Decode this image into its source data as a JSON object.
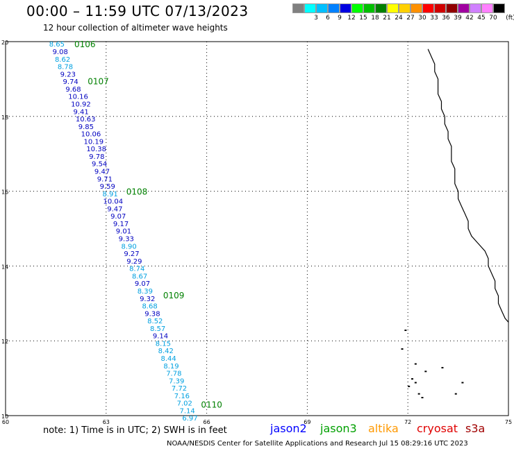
{
  "header": {
    "title": "00:00 – 11:59 UTC 07/13/2023",
    "subtitle": "12 hour collection of altimeter wave heights"
  },
  "legend": {
    "swatches": [
      {
        "label": "",
        "color": "#808080"
      },
      {
        "label": "3",
        "color": "#00ffff"
      },
      {
        "label": "6",
        "color": "#00bfff"
      },
      {
        "label": "9",
        "color": "#0080ff"
      },
      {
        "label": "12",
        "color": "#0000e0"
      },
      {
        "label": "15",
        "color": "#00ff00"
      },
      {
        "label": "18",
        "color": "#00c000"
      },
      {
        "label": "21",
        "color": "#008000"
      },
      {
        "label": "24",
        "color": "#ffff00"
      },
      {
        "label": "27",
        "color": "#ffd000"
      },
      {
        "label": "30",
        "color": "#ff9000"
      },
      {
        "label": "33",
        "color": "#ff0000"
      },
      {
        "label": "36",
        "color": "#d00000"
      },
      {
        "label": "39",
        "color": "#900000"
      },
      {
        "label": "42",
        "color": "#a000a0"
      },
      {
        "label": "45",
        "color": "#d080ff"
      },
      {
        "label": "70",
        "color": "#ff80ff"
      },
      {
        "label": "",
        "color": "#000000"
      }
    ],
    "unit": "(ft)"
  },
  "map": {
    "lat_ticks": [
      "20",
      "18",
      "16",
      "14",
      "12",
      "10"
    ],
    "lon_ticks": [
      "60",
      "63",
      "66",
      "69",
      "72",
      "75"
    ],
    "track_color_dark": "#0000c0",
    "track_color_light": "#00a0e0",
    "time_label_color": "#008000",
    "time_labels": [
      {
        "text": "0106",
        "lat": 19.94,
        "lon": 62.05
      },
      {
        "text": "0107",
        "lat": 18.95,
        "lon": 62.45
      },
      {
        "text": "0108",
        "lat": 16.0,
        "lon": 63.6
      },
      {
        "text": "0109",
        "lat": 13.23,
        "lon": 64.7
      },
      {
        "text": "0110",
        "lat": 10.31,
        "lon": 65.83
      }
    ],
    "points": [
      {
        "text": "8.65",
        "lat": 19.94,
        "lon": 61.3,
        "tone": "light"
      },
      {
        "text": "9.08",
        "lat": 19.74,
        "lon": 61.4,
        "tone": "dark"
      },
      {
        "text": "8.62",
        "lat": 19.54,
        "lon": 61.47,
        "tone": "light"
      },
      {
        "text": "8.78",
        "lat": 19.34,
        "lon": 61.55,
        "tone": "light"
      },
      {
        "text": "9.23",
        "lat": 19.14,
        "lon": 61.63,
        "tone": "dark"
      },
      {
        "text": "9.74",
        "lat": 18.94,
        "lon": 61.71,
        "tone": "dark"
      },
      {
        "text": "9.68",
        "lat": 18.74,
        "lon": 61.79,
        "tone": "dark"
      },
      {
        "text": "10.16",
        "lat": 18.54,
        "lon": 61.87,
        "tone": "dark"
      },
      {
        "text": "10.92",
        "lat": 18.34,
        "lon": 61.95,
        "tone": "dark"
      },
      {
        "text": "9.41",
        "lat": 18.14,
        "lon": 62.02,
        "tone": "dark"
      },
      {
        "text": "10.63",
        "lat": 17.94,
        "lon": 62.09,
        "tone": "dark"
      },
      {
        "text": "9.85",
        "lat": 17.74,
        "lon": 62.17,
        "tone": "dark"
      },
      {
        "text": "10.06",
        "lat": 17.54,
        "lon": 62.25,
        "tone": "dark"
      },
      {
        "text": "10.19",
        "lat": 17.34,
        "lon": 62.33,
        "tone": "dark"
      },
      {
        "text": "10.38",
        "lat": 17.14,
        "lon": 62.41,
        "tone": "dark"
      },
      {
        "text": "9.78",
        "lat": 16.94,
        "lon": 62.49,
        "tone": "dark"
      },
      {
        "text": "9.54",
        "lat": 16.74,
        "lon": 62.57,
        "tone": "dark"
      },
      {
        "text": "9.47",
        "lat": 16.54,
        "lon": 62.65,
        "tone": "dark"
      },
      {
        "text": "9.71",
        "lat": 16.34,
        "lon": 62.73,
        "tone": "dark"
      },
      {
        "text": "9.59",
        "lat": 16.14,
        "lon": 62.81,
        "tone": "dark"
      },
      {
        "text": "8.91",
        "lat": 15.94,
        "lon": 62.89,
        "tone": "light"
      },
      {
        "text": "10.04",
        "lat": 15.74,
        "lon": 62.91,
        "tone": "dark"
      },
      {
        "text": "9.47",
        "lat": 15.54,
        "lon": 63.03,
        "tone": "dark"
      },
      {
        "text": "9.07",
        "lat": 15.34,
        "lon": 63.13,
        "tone": "dark"
      },
      {
        "text": "9.17",
        "lat": 15.14,
        "lon": 63.21,
        "tone": "dark"
      },
      {
        "text": "9.01",
        "lat": 14.94,
        "lon": 63.29,
        "tone": "dark"
      },
      {
        "text": "9.33",
        "lat": 14.74,
        "lon": 63.37,
        "tone": "dark"
      },
      {
        "text": "8.90",
        "lat": 14.54,
        "lon": 63.45,
        "tone": "light"
      },
      {
        "text": "9.27",
        "lat": 14.34,
        "lon": 63.53,
        "tone": "dark"
      },
      {
        "text": "9.29",
        "lat": 14.14,
        "lon": 63.61,
        "tone": "dark"
      },
      {
        "text": "8.74",
        "lat": 13.94,
        "lon": 63.69,
        "tone": "light"
      },
      {
        "text": "8.67",
        "lat": 13.74,
        "lon": 63.77,
        "tone": "light"
      },
      {
        "text": "9.07",
        "lat": 13.54,
        "lon": 63.85,
        "tone": "dark"
      },
      {
        "text": "8.39",
        "lat": 13.34,
        "lon": 63.93,
        "tone": "light"
      },
      {
        "text": "9.32",
        "lat": 13.14,
        "lon": 64.0,
        "tone": "dark"
      },
      {
        "text": "8.68",
        "lat": 12.94,
        "lon": 64.07,
        "tone": "light"
      },
      {
        "text": "9.38",
        "lat": 12.74,
        "lon": 64.15,
        "tone": "dark"
      },
      {
        "text": "8.52",
        "lat": 12.54,
        "lon": 64.23,
        "tone": "light"
      },
      {
        "text": "8.57",
        "lat": 12.34,
        "lon": 64.31,
        "tone": "light"
      },
      {
        "text": "9.14",
        "lat": 12.14,
        "lon": 64.39,
        "tone": "dark"
      },
      {
        "text": "8.15",
        "lat": 11.94,
        "lon": 64.47,
        "tone": "light"
      },
      {
        "text": "8.42",
        "lat": 11.74,
        "lon": 64.55,
        "tone": "light"
      },
      {
        "text": "8.44",
        "lat": 11.54,
        "lon": 64.63,
        "tone": "light"
      },
      {
        "text": "8.19",
        "lat": 11.34,
        "lon": 64.71,
        "tone": "light"
      },
      {
        "text": "7.78",
        "lat": 11.14,
        "lon": 64.79,
        "tone": "light"
      },
      {
        "text": "7.39",
        "lat": 10.94,
        "lon": 64.87,
        "tone": "light"
      },
      {
        "text": "7.72",
        "lat": 10.74,
        "lon": 64.95,
        "tone": "light"
      },
      {
        "text": "7.16",
        "lat": 10.54,
        "lon": 65.03,
        "tone": "light"
      },
      {
        "text": "7.02",
        "lat": 10.34,
        "lon": 65.11,
        "tone": "light"
      },
      {
        "text": "7.14",
        "lat": 10.14,
        "lon": 65.19,
        "tone": "light"
      },
      {
        "text": "6.97",
        "lat": 9.94,
        "lon": 65.27,
        "tone": "light"
      }
    ],
    "coastline": [
      [
        19.8,
        72.6
      ],
      [
        19.6,
        72.7
      ],
      [
        19.4,
        72.8
      ],
      [
        19.2,
        72.8
      ],
      [
        19.0,
        72.9
      ],
      [
        18.8,
        72.9
      ],
      [
        18.6,
        72.9
      ],
      [
        18.4,
        73.0
      ],
      [
        18.2,
        73.0
      ],
      [
        18.0,
        73.1
      ],
      [
        17.8,
        73.1
      ],
      [
        17.6,
        73.2
      ],
      [
        17.4,
        73.2
      ],
      [
        17.2,
        73.3
      ],
      [
        17.0,
        73.3
      ],
      [
        16.8,
        73.3
      ],
      [
        16.6,
        73.4
      ],
      [
        16.4,
        73.4
      ],
      [
        16.2,
        73.4
      ],
      [
        16.0,
        73.5
      ],
      [
        15.8,
        73.5
      ],
      [
        15.6,
        73.6
      ],
      [
        15.4,
        73.7
      ],
      [
        15.2,
        73.8
      ],
      [
        15.0,
        73.8
      ],
      [
        14.8,
        73.9
      ],
      [
        14.6,
        74.1
      ],
      [
        14.4,
        74.3
      ],
      [
        14.2,
        74.4
      ],
      [
        14.0,
        74.4
      ],
      [
        13.8,
        74.5
      ],
      [
        13.6,
        74.6
      ],
      [
        13.4,
        74.6
      ],
      [
        13.2,
        74.7
      ],
      [
        13.0,
        74.7
      ],
      [
        12.8,
        74.8
      ],
      [
        12.6,
        74.9
      ],
      [
        12.5,
        75.0
      ]
    ],
    "islands": [
      [
        12.3,
        71.9
      ],
      [
        11.8,
        71.8
      ],
      [
        11.4,
        72.2
      ],
      [
        11.2,
        72.5
      ],
      [
        11.0,
        72.1
      ],
      [
        10.9,
        72.2
      ],
      [
        10.8,
        72.0
      ],
      [
        10.6,
        72.3
      ],
      [
        10.5,
        72.4
      ],
      [
        10.6,
        73.4
      ],
      [
        10.9,
        73.6
      ],
      [
        11.3,
        73.0
      ]
    ]
  },
  "footer": {
    "note": "note: 1) Time is in UTC; 2) SWH is in feet",
    "missions": [
      {
        "label": "jason2",
        "color": "#0000ff"
      },
      {
        "label": "jason3",
        "color": "#00a000"
      },
      {
        "label": "altika",
        "color": "#ff9900"
      },
      {
        "label": "cryosat",
        "color": "#e00000"
      },
      {
        "label": "s3a",
        "color": "#a00000"
      }
    ],
    "credit": "NOAA/NESDIS Center for Satellite Applications and Research    Jul 15 08:29:16 UTC 2023"
  }
}
